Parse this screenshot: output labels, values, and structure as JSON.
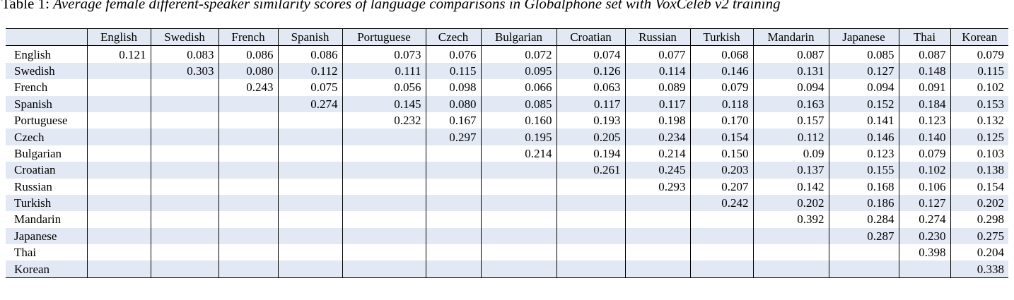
{
  "caption": {
    "lead": "Table 1: ",
    "text": "Average female different-speaker similarity scores of language comparisons in Globalphone set with VoxCeleb v2 training"
  },
  "table": {
    "corner": "",
    "columns": [
      "English",
      "Swedish",
      "French",
      "Spanish",
      "Portuguese",
      "Czech",
      "Bulgarian",
      "Croatian",
      "Russian",
      "Turkish",
      "Mandarin",
      "Japanese",
      "Thai",
      "Korean"
    ],
    "rows": [
      {
        "label": "English",
        "cells": [
          "0.121",
          "0.083",
          "0.086",
          "0.086",
          "0.073",
          "0.076",
          "0.072",
          "0.074",
          "0.077",
          "0.068",
          "0.087",
          "0.085",
          "0.087",
          "0.079"
        ]
      },
      {
        "label": "Swedish",
        "cells": [
          "",
          "0.303",
          "0.080",
          "0.112",
          "0.111",
          "0.115",
          "0.095",
          "0.126",
          "0.114",
          "0.146",
          "0.131",
          "0.127",
          "0.148",
          "0.115"
        ]
      },
      {
        "label": "French",
        "cells": [
          "",
          "",
          "0.243",
          "0.075",
          "0.056",
          "0.098",
          "0.066",
          "0.063",
          "0.089",
          "0.079",
          "0.094",
          "0.094",
          "0.091",
          "0.102"
        ]
      },
      {
        "label": "Spanish",
        "cells": [
          "",
          "",
          "",
          "0.274",
          "0.145",
          "0.080",
          "0.085",
          "0.117",
          "0.117",
          "0.118",
          "0.163",
          "0.152",
          "0.184",
          "0.153"
        ]
      },
      {
        "label": "Portuguese",
        "cells": [
          "",
          "",
          "",
          "",
          "0.232",
          "0.167",
          "0.160",
          "0.193",
          "0.198",
          "0.170",
          "0.157",
          "0.141",
          "0.123",
          "0.132"
        ]
      },
      {
        "label": "Czech",
        "cells": [
          "",
          "",
          "",
          "",
          "",
          "0.297",
          "0.195",
          "0.205",
          "0.234",
          "0.154",
          "0.112",
          "0.146",
          "0.140",
          "0.125"
        ]
      },
      {
        "label": "Bulgarian",
        "cells": [
          "",
          "",
          "",
          "",
          "",
          "",
          "0.214",
          "0.194",
          "0.214",
          "0.150",
          "0.09",
          "0.123",
          "0.079",
          "0.103"
        ]
      },
      {
        "label": "Croatian",
        "cells": [
          "",
          "",
          "",
          "",
          "",
          "",
          "",
          "0.261",
          "0.245",
          "0.203",
          "0.137",
          "0.155",
          "0.102",
          "0.138"
        ]
      },
      {
        "label": "Russian",
        "cells": [
          "",
          "",
          "",
          "",
          "",
          "",
          "",
          "",
          "0.293",
          "0.207",
          "0.142",
          "0.168",
          "0.106",
          "0.154"
        ]
      },
      {
        "label": "Turkish",
        "cells": [
          "",
          "",
          "",
          "",
          "",
          "",
          "",
          "",
          "",
          "0.242",
          "0.202",
          "0.186",
          "0.127",
          "0.202"
        ]
      },
      {
        "label": "Mandarin",
        "cells": [
          "",
          "",
          "",
          "",
          "",
          "",
          "",
          "",
          "",
          "",
          "0.392",
          "0.284",
          "0.274",
          "0.298"
        ]
      },
      {
        "label": "Japanese",
        "cells": [
          "",
          "",
          "",
          "",
          "",
          "",
          "",
          "",
          "",
          "",
          "",
          "0.287",
          "0.230",
          "0.275"
        ]
      },
      {
        "label": "Thai",
        "cells": [
          "",
          "",
          "",
          "",
          "",
          "",
          "",
          "",
          "",
          "",
          "",
          "",
          "0.398",
          "0.204"
        ]
      },
      {
        "label": "Korean",
        "cells": [
          "",
          "",
          "",
          "",
          "",
          "",
          "",
          "",
          "",
          "",
          "",
          "",
          "",
          "0.338"
        ]
      }
    ]
  }
}
